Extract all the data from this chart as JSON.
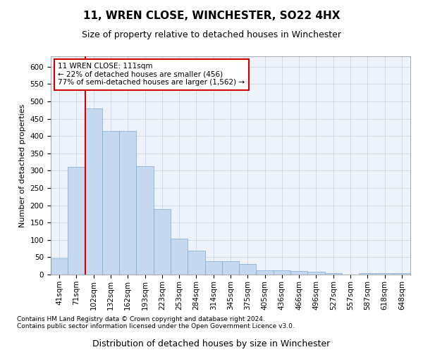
{
  "title": "11, WREN CLOSE, WINCHESTER, SO22 4HX",
  "subtitle": "Size of property relative to detached houses in Winchester",
  "xlabel": "Distribution of detached houses by size in Winchester",
  "ylabel": "Number of detached properties",
  "footnote1": "Contains HM Land Registry data © Crown copyright and database right 2024.",
  "footnote2": "Contains public sector information licensed under the Open Government Licence v3.0.",
  "categories": [
    "41sqm",
    "71sqm",
    "102sqm",
    "132sqm",
    "162sqm",
    "193sqm",
    "223sqm",
    "253sqm",
    "284sqm",
    "314sqm",
    "345sqm",
    "375sqm",
    "405sqm",
    "436sqm",
    "466sqm",
    "496sqm",
    "527sqm",
    "557sqm",
    "587sqm",
    "618sqm",
    "648sqm"
  ],
  "values": [
    46,
    311,
    480,
    415,
    415,
    313,
    190,
    103,
    70,
    38,
    38,
    30,
    13,
    13,
    10,
    9,
    5,
    0,
    5,
    5,
    5
  ],
  "bar_color": "#c5d8f0",
  "bar_edge_color": "#7baad4",
  "vline_color": "#cc0000",
  "vline_x_index": 2,
  "annotation_text": "11 WREN CLOSE: 111sqm\n← 22% of detached houses are smaller (456)\n77% of semi-detached houses are larger (1,562) →",
  "annotation_box_color": "#cc0000",
  "ylim": [
    0,
    630
  ],
  "yticks": [
    0,
    50,
    100,
    150,
    200,
    250,
    300,
    350,
    400,
    450,
    500,
    550,
    600
  ],
  "grid_color": "#c8d0e0",
  "bg_color": "#edf2fb",
  "title_fontsize": 11,
  "subtitle_fontsize": 9,
  "xlabel_fontsize": 9,
  "ylabel_fontsize": 8,
  "tick_fontsize": 7.5,
  "annotation_fontsize": 7.5,
  "footnote_fontsize": 6.5
}
